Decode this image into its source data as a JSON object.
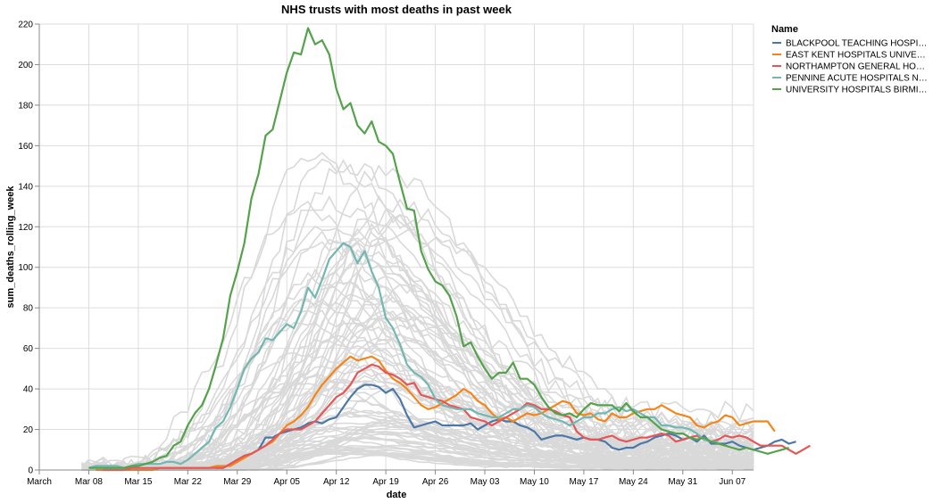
{
  "chart_data": {
    "type": "line",
    "title": "NHS trusts with most deaths in past week",
    "xlabel": "date",
    "ylabel": "sum_deaths_rolling_week",
    "x_ticks": [
      "March",
      "Mar 08",
      "Mar 15",
      "Mar 22",
      "Mar 29",
      "Apr 05",
      "Apr 12",
      "Apr 19",
      "Apr 26",
      "May 03",
      "May 10",
      "May 17",
      "May 24",
      "May 31",
      "Jun 07"
    ],
    "x_range": [
      "2020-03-01",
      "2020-06-10"
    ],
    "ylim": [
      0,
      220
    ],
    "y_ticks": [
      0,
      20,
      40,
      60,
      80,
      100,
      120,
      140,
      160,
      180,
      200,
      220
    ],
    "grid": true,
    "legend_title": "Name",
    "legend_position": "right",
    "background_series_color": "#d9d9d9",
    "series": [
      {
        "name": "BLACKPOOL TEACHING HOSPI…",
        "color": "#4c78a8",
        "start": "2020-03-26",
        "values": [
          1,
          1,
          3,
          5,
          7,
          8,
          10,
          16,
          16,
          18,
          19,
          20,
          21,
          23,
          24,
          23,
          25,
          26,
          31,
          36,
          40,
          42,
          42,
          41,
          38,
          40,
          35,
          27,
          21,
          22,
          23,
          24,
          22,
          22,
          22,
          22,
          23,
          20,
          22,
          24,
          25,
          24,
          24,
          22,
          21,
          19,
          15,
          16,
          17,
          17,
          16,
          15,
          16,
          15,
          15,
          14,
          11,
          10,
          11,
          11,
          13,
          14,
          16,
          17,
          18,
          17,
          15,
          16,
          14,
          17,
          13,
          13,
          13,
          14,
          12,
          11,
          10,
          11,
          12,
          14,
          15,
          13,
          14
        ]
      },
      {
        "name": "EAST KENT HOSPITALS UNIVE…",
        "color": "#f58518",
        "start": "2020-03-09",
        "values": [
          0,
          0,
          0,
          0,
          0,
          0,
          0,
          0,
          0,
          1,
          1,
          1,
          1,
          1,
          1,
          1,
          1,
          2,
          2,
          2,
          4,
          6,
          8,
          10,
          12,
          14,
          18,
          22,
          24,
          27,
          31,
          37,
          42,
          46,
          50,
          53,
          56,
          54,
          55,
          56,
          54,
          49,
          45,
          43,
          40,
          36,
          32,
          30,
          31,
          33,
          35,
          37,
          40,
          38,
          34,
          32,
          28,
          25,
          26,
          24,
          26,
          28,
          27,
          28,
          30,
          32,
          34,
          33,
          28,
          27,
          28,
          25,
          24,
          28,
          26,
          26,
          28,
          29,
          30,
          30,
          32,
          30,
          28,
          27,
          26,
          22,
          21,
          23,
          24,
          27,
          26,
          22,
          23,
          24,
          24,
          24,
          19
        ]
      },
      {
        "name": "NORTHAMPTON GENERAL HO…",
        "color": "#e45756",
        "start": "2020-03-10",
        "values": [
          0,
          0,
          0,
          0,
          1,
          1,
          1,
          1,
          1,
          1,
          1,
          1,
          1,
          1,
          1,
          1,
          1,
          1,
          3,
          5,
          7,
          8,
          10,
          12,
          15,
          18,
          20,
          20,
          20,
          22,
          24,
          28,
          32,
          36,
          38,
          42,
          48,
          50,
          52,
          51,
          48,
          47,
          45,
          42,
          43,
          37,
          36,
          35,
          34,
          32,
          31,
          30,
          26,
          25,
          24,
          22,
          24,
          26,
          28,
          30,
          33,
          32,
          30,
          30,
          29,
          27,
          26,
          19,
          16,
          15,
          15,
          16,
          17,
          15,
          14,
          15,
          16,
          16,
          17,
          18,
          17,
          14,
          15,
          16,
          17,
          15,
          14,
          15,
          17,
          16,
          17,
          16,
          14,
          12,
          12,
          12,
          12,
          10,
          8,
          10,
          12
        ]
      },
      {
        "name": "PENNINE ACUTE HOSPITALS N…",
        "color": "#72b7b2",
        "start": "2020-03-08",
        "values": [
          1,
          2,
          2,
          2,
          2,
          1,
          2,
          3,
          3,
          3,
          3,
          4,
          4,
          3,
          5,
          8,
          11,
          14,
          21,
          24,
          31,
          40,
          50,
          55,
          58,
          65,
          64,
          68,
          72,
          70,
          78,
          90,
          85,
          94,
          104,
          108,
          112,
          110,
          102,
          108,
          98,
          90,
          75,
          70,
          62,
          52,
          48,
          46,
          42,
          35,
          32,
          31,
          30,
          30,
          30,
          28,
          27,
          26,
          26,
          28,
          30,
          30,
          32,
          31,
          28,
          26,
          25,
          24,
          22,
          24,
          26,
          26,
          28,
          28,
          30,
          31,
          29,
          30,
          28,
          26,
          26,
          22,
          22,
          21,
          21,
          20,
          18,
          15,
          14,
          14
        ]
      },
      {
        "name": "UNIVERSITY HOSPITALS BIRMI…",
        "color": "#54a24b",
        "start": "2020-03-08",
        "values": [
          1,
          1,
          1,
          1,
          1,
          1,
          2,
          2,
          3,
          4,
          6,
          7,
          12,
          14,
          22,
          28,
          32,
          40,
          52,
          65,
          86,
          98,
          112,
          134,
          146,
          165,
          168,
          182,
          196,
          206,
          205,
          218,
          210,
          212,
          205,
          188,
          178,
          181,
          170,
          166,
          172,
          162,
          160,
          156,
          142,
          129,
          128,
          108,
          99,
          93,
          91,
          86,
          76,
          61,
          63,
          56,
          50,
          45,
          48,
          48,
          53,
          45,
          45,
          42,
          36,
          31,
          28,
          27,
          28,
          26,
          30,
          33,
          32,
          32,
          32,
          29,
          33,
          29,
          26,
          26,
          23,
          20,
          19,
          18,
          18,
          16,
          15,
          16,
          14,
          13,
          12,
          11,
          10,
          11,
          10,
          9,
          8,
          9,
          10,
          11
        ]
      }
    ]
  }
}
